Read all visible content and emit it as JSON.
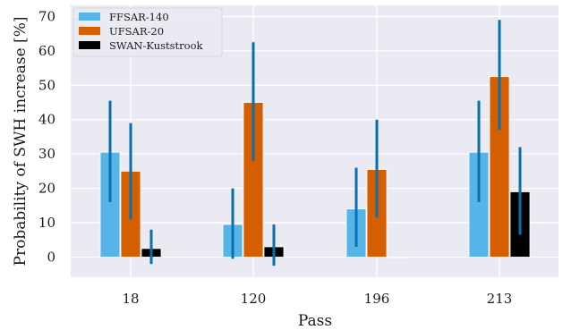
{
  "chart_data": {
    "type": "bar",
    "title": "",
    "xlabel": "Pass",
    "ylabel": "Probability of SWH increase [%]",
    "categories": [
      "18",
      "120",
      "196",
      "213"
    ],
    "ylim": [
      -6,
      72
    ],
    "yticks": [
      0,
      10,
      20,
      30,
      40,
      50,
      60,
      70
    ],
    "grid": true,
    "legend_position": "top-left",
    "error_bar_color": "#0a6fad",
    "series": [
      {
        "name": "FFSAR-140",
        "color": "#56b4e9",
        "values": [
          30.5,
          9.5,
          14,
          30.5
        ],
        "errors": [
          [
            16,
            45.5
          ],
          [
            -0.5,
            20
          ],
          [
            3,
            26
          ],
          [
            16,
            45.5
          ]
        ]
      },
      {
        "name": "UFSAR-20",
        "color": "#d55e00",
        "values": [
          25,
          45,
          25.5,
          52.5
        ],
        "errors": [
          [
            11,
            39
          ],
          [
            28,
            62.5
          ],
          [
            11.5,
            40
          ],
          [
            37,
            69
          ]
        ]
      },
      {
        "name": "SWAN-Kuststrook",
        "color": "#000000",
        "values": [
          2.5,
          3,
          0,
          19
        ],
        "errors": [
          [
            -2,
            8
          ],
          [
            -2.5,
            9.5
          ],
          null,
          [
            6.5,
            32
          ]
        ]
      }
    ]
  }
}
